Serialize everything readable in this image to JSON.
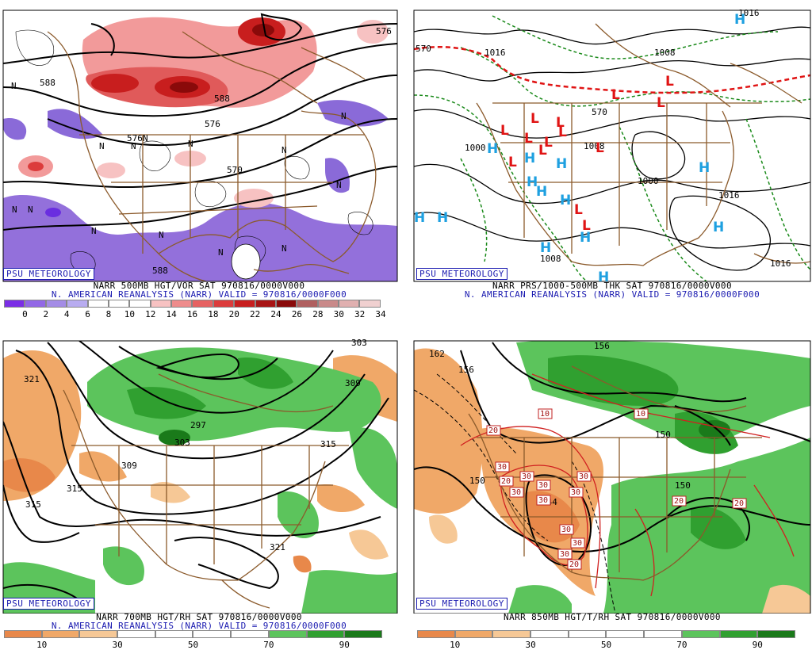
{
  "panels": [
    {
      "id": "p500",
      "logo": "PSU METEOROLOGY",
      "caption1": "NARR 500MB HGT/VOR SAT 970816/0000V000",
      "caption2": "N. AMERICAN REANALYSIS (NARR) VALID = 970816/0000F000",
      "contour_labels": [
        "588",
        "576",
        "570",
        "576",
        "588",
        "588",
        "576"
      ],
      "n_labels": [
        "N",
        "N",
        "N",
        "N",
        "N",
        "N",
        "N",
        "N",
        "N",
        "N",
        "N",
        "N",
        "N",
        "N"
      ],
      "colorbar": {
        "colors": [
          "#7b2ee6",
          "#9268e6",
          "#a48ce6",
          "#b8acf0",
          "#ffffff",
          "#ffffff",
          "#ffffff",
          "#f7c2c2",
          "#ee8c8c",
          "#e66262",
          "#dc3c3c",
          "#c81e1e",
          "#a81414",
          "#8a0a0a",
          "#b06060",
          "#c98a8a",
          "#e0b0b0",
          "#f0d0d0"
        ],
        "ticks": [
          "0",
          "2",
          "4",
          "6",
          "8",
          "10",
          "12",
          "14",
          "16",
          "18",
          "20",
          "22",
          "24",
          "26",
          "28",
          "30",
          "32",
          "34"
        ]
      }
    },
    {
      "id": "psfc",
      "logo": "PSU METEOROLOGY",
      "caption1": "NARR PRS/1000-500MB THK SAT 970816/0000V000",
      "caption2": "N. AMERICAN REANALYSIS (NARR) VALID = 970816/0000F000",
      "contour_labels": [
        "570",
        "1016",
        "1008",
        "1008",
        "1000",
        "1000",
        "1008",
        "1016",
        "1016",
        "1016",
        "570"
      ],
      "highs": [
        "H",
        "H",
        "H",
        "H",
        "H",
        "H",
        "H",
        "H",
        "H",
        "H",
        "H",
        "H",
        "H",
        "H"
      ],
      "lows": [
        "L",
        "L",
        "L",
        "L",
        "L",
        "L",
        "L",
        "L",
        "L",
        "L",
        "L",
        "L",
        "L",
        "L"
      ],
      "colors": {
        "high": "#1ea0e0",
        "low": "#e01414",
        "thickness": "#1a8a1a",
        "front": "#e01414"
      }
    },
    {
      "id": "p700",
      "logo": "PSU METEOROLOGY",
      "caption1": "NARR 700MB HGT/RH SAT 970816/0000V000",
      "caption2": "N. AMERICAN REANALYSIS (NARR) VALID = 970816/0000F000",
      "contour_labels": [
        "321",
        "315",
        "315",
        "309",
        "297",
        "303",
        "309",
        "315",
        "321",
        "303"
      ],
      "colorbar": {
        "colors": [
          "#e8884a",
          "#f0a868",
          "#f6c896",
          "#ffffff",
          "#ffffff",
          "#ffffff",
          "#ffffff",
          "#5cc45c",
          "#30a030",
          "#1a7a1a"
        ],
        "ticks": [
          "10",
          "30",
          "50",
          "70",
          "90"
        ]
      }
    },
    {
      "id": "p850",
      "logo": "PSU METEOROLOGY",
      "caption1": "NARR 850MB HGT/T/RH SAT 970816/0000V000",
      "caption2": "",
      "contour_labels": [
        "162",
        "156",
        "150",
        "144",
        "150",
        "156",
        "150"
      ],
      "temp_boxes": [
        "10",
        "10",
        "20",
        "20",
        "30",
        "30",
        "30",
        "30",
        "30",
        "30",
        "30",
        "30",
        "30",
        "30",
        "20",
        "20",
        "20"
      ],
      "colorbar": {
        "colors": [
          "#e8884a",
          "#f0a868",
          "#f6c896",
          "#ffffff",
          "#ffffff",
          "#ffffff",
          "#ffffff",
          "#5cc45c",
          "#30a030",
          "#1a7a1a"
        ],
        "ticks": [
          "10",
          "30",
          "50",
          "70",
          "90"
        ]
      }
    }
  ]
}
